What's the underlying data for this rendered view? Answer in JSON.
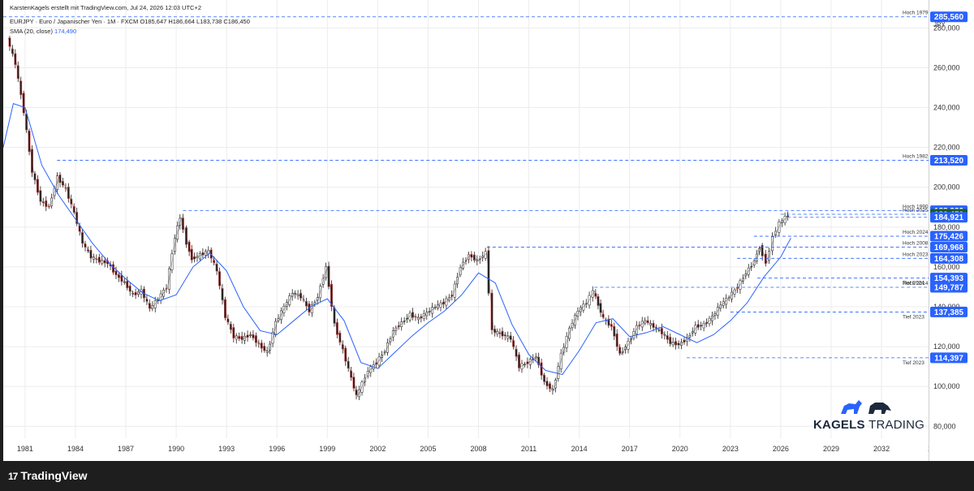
{
  "header": {
    "credit": "KarstenKagels erstellt mit TradingView.com, Jul 24, 2026 12:03 UTC+2",
    "symbol_line": "EURJPY · Euro / Japanischer Yen · 1M · FXCM",
    "ohlc": "O185,647  H186,664  L183,738  C186,450",
    "sma_label": "SMA (20, close)",
    "sma_value": "174,490"
  },
  "currency": "JPY",
  "branding": {
    "watermark_a": "KAGELS",
    "watermark_b": "TRADING",
    "tv_logo": "TradingView",
    "tv_mark": "17"
  },
  "colors": {
    "candle_up": "#26a69a",
    "candle_down": "#ef5350",
    "candle_body": "#222222",
    "sma": "#2962ff",
    "level_line": "#2962ff",
    "label_bg": "#2962ff",
    "last_price_bg": "#1b5e20",
    "grid": "#ececec"
  },
  "chart_data": {
    "type": "line",
    "title": "EURJPY · Euro / Japanischer Yen · 1M · FXCM",
    "xlabel": "",
    "ylabel": "JPY",
    "x_ticks": [
      "1981",
      "1984",
      "1987",
      "1990",
      "1993",
      "1996",
      "1999",
      "2002",
      "2005",
      "2008",
      "2011",
      "2014",
      "2017",
      "2020",
      "2023",
      "2026",
      "2029",
      "2032",
      "20"
    ],
    "y_ticks": [
      80000,
      100000,
      120000,
      140000,
      160000,
      180000,
      200000,
      220000,
      240000,
      260000,
      280000
    ],
    "ylim": [
      74000,
      294000
    ],
    "xlim": [
      1979.7,
      2034.8
    ],
    "grid": true,
    "series": [
      {
        "name": "EURJPY",
        "x": [
          1980.0,
          1980.5,
          1981.0,
          1981.5,
          1982.0,
          1982.5,
          1983.0,
          1983.5,
          1984.0,
          1984.5,
          1985.0,
          1985.5,
          1986.0,
          1986.5,
          1987.0,
          1987.5,
          1988.0,
          1988.5,
          1989.0,
          1989.5,
          1990.0,
          1990.3,
          1990.7,
          1991.0,
          1991.5,
          1992.0,
          1992.5,
          1993.0,
          1993.5,
          1994.0,
          1994.5,
          1995.0,
          1995.5,
          1996.0,
          1996.5,
          1997.0,
          1997.5,
          1998.0,
          1998.5,
          1999.0,
          1999.5,
          2000.0,
          2000.5,
          2000.8,
          2001.5,
          2002.0,
          2002.5,
          2003.0,
          2003.5,
          2004.0,
          2004.5,
          2005.0,
          2005.5,
          2006.0,
          2006.5,
          2007.0,
          2007.5,
          2008.0,
          2008.5,
          2008.9,
          2009.5,
          2010.0,
          2010.5,
          2011.0,
          2011.5,
          2012.0,
          2012.5,
          2013.0,
          2013.5,
          2014.0,
          2014.5,
          2014.9,
          2015.5,
          2016.0,
          2016.5,
          2017.0,
          2017.5,
          2018.0,
          2018.5,
          2019.0,
          2019.5,
          2020.0,
          2020.5,
          2021.0,
          2021.5,
          2022.0,
          2022.5,
          2023.0,
          2023.5,
          2024.0,
          2024.5,
          2024.8,
          2025.2,
          2025.6,
          2026.0,
          2026.5
        ],
        "values": [
          275000,
          262000,
          238000,
          208000,
          193000,
          190000,
          205000,
          199000,
          187000,
          172000,
          165000,
          163000,
          162000,
          156000,
          152000,
          146000,
          148000,
          139000,
          144000,
          150000,
          175000,
          185000,
          172000,
          164000,
          166000,
          168000,
          158000,
          135000,
          125000,
          124000,
          126000,
          121000,
          117000,
          132000,
          140000,
          147000,
          145000,
          138000,
          145000,
          160000,
          131000,
          118000,
          104000,
          95000,
          108000,
          112000,
          118000,
          128000,
          132000,
          136000,
          134000,
          137000,
          140000,
          142000,
          146000,
          160000,
          166000,
          163000,
          167000,
          128000,
          126000,
          124000,
          110000,
          112000,
          115000,
          102000,
          98000,
          116000,
          129000,
          138000,
          142000,
          148000,
          134000,
          130000,
          116000,
          122000,
          130000,
          133000,
          130000,
          127000,
          122000,
          121000,
          124000,
          130000,
          131000,
          135000,
          141000,
          145000,
          150000,
          157000,
          163000,
          170000,
          162000,
          175000,
          182000,
          186000
        ]
      },
      {
        "name": "SMA (20, close)",
        "x": [
          1979.7,
          1980.3,
          1981.0,
          1982.0,
          1983.0,
          1984.0,
          1985.0,
          1986.0,
          1987.0,
          1988.0,
          1989.0,
          1990.0,
          1991.0,
          1992.0,
          1993.0,
          1994.0,
          1995.0,
          1996.0,
          1997.0,
          1998.0,
          1999.0,
          2000.0,
          2001.0,
          2002.0,
          2003.0,
          2004.0,
          2005.0,
          2006.0,
          2007.0,
          2008.0,
          2009.0,
          2010.0,
          2011.0,
          2012.0,
          2013.0,
          2014.0,
          2015.0,
          2016.0,
          2017.0,
          2018.0,
          2019.0,
          2020.0,
          2021.0,
          2022.0,
          2023.0,
          2024.0,
          2025.0,
          2026.0,
          2026.6
        ],
        "values": [
          220000,
          242000,
          240000,
          211000,
          196000,
          184000,
          172000,
          162000,
          154000,
          147000,
          143000,
          146000,
          160000,
          167000,
          158000,
          140000,
          128000,
          126000,
          133000,
          140000,
          144000,
          133000,
          112000,
          109000,
          117000,
          125000,
          132000,
          138000,
          146000,
          157000,
          152000,
          131000,
          116000,
          108000,
          106000,
          118000,
          132000,
          134000,
          125000,
          127000,
          130000,
          126000,
          122000,
          126000,
          133000,
          142000,
          155000,
          165000,
          174490
        ]
      }
    ],
    "levels": [
      {
        "value": 285560,
        "label": "285,560",
        "tag": "Hoch 1979",
        "x_start": 1979.7
      },
      {
        "value": 213520,
        "label": "213,520",
        "tag": "Hoch 1982",
        "x_start": 1982.9
      },
      {
        "value": 188220,
        "label": "188,220",
        "tag": "Hoch 1990",
        "x_start": 1990.4
      },
      {
        "value": 186450,
        "label": "186,450",
        "tag": "Hoch 2025",
        "x_start": 2026.0
      },
      {
        "value": 184921,
        "label": "184,921",
        "tag": "",
        "x_start": 2026.4
      },
      {
        "value": 175426,
        "label": "175,426",
        "tag": "Hoch 2024",
        "x_start": 2024.4
      },
      {
        "value": 169968,
        "label": "169,968",
        "tag": "Hoch 2008",
        "x_start": 2008.5
      },
      {
        "value": 164308,
        "label": "164,308",
        "tag": "Hoch 2023",
        "x_start": 2023.4
      },
      {
        "value": 154393,
        "label": "154,393",
        "tag": "Tief 2024",
        "x_start": 2024.6
      },
      {
        "value": 149787,
        "label": "149,787",
        "tag": "Hoch 2014",
        "x_start": 2014.9
      },
      {
        "value": 137385,
        "label": "137,385",
        "tag": "Tief 2023",
        "x_start": 2023.0
      },
      {
        "value": 114397,
        "label": "114,397",
        "tag": "Tief 2023",
        "x_start": 2020.4
      }
    ],
    "last_price": 186450
  }
}
